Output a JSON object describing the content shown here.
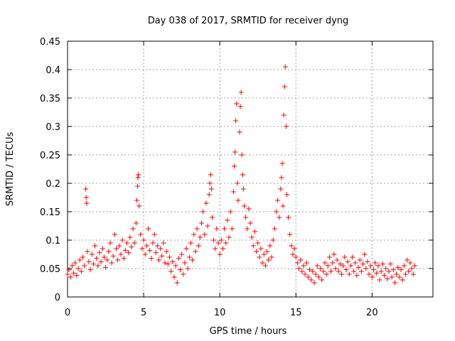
{
  "chart_data": {
    "type": "scatter",
    "title": "Day 038 of 2017, SRMTID for receiver dyng",
    "xlabel": "GPS time / hours",
    "ylabel": "SRMTID / TECUs",
    "xlim": [
      0,
      24
    ],
    "ylim": [
      0,
      0.45
    ],
    "xticks": [
      0,
      5,
      10,
      15,
      20
    ],
    "xtick_labels": [
      "0",
      "5",
      "10",
      "15",
      "20"
    ],
    "yticks": [
      0,
      0.05,
      0.1,
      0.15,
      0.2,
      0.25,
      0.3,
      0.35,
      0.4,
      0.45
    ],
    "ytick_labels": [
      "0",
      "0.05",
      "0.1",
      "0.15",
      "0.2",
      "0.25",
      "0.3",
      "0.35",
      "0.4",
      "0.45"
    ],
    "grid": true,
    "marker": "plus",
    "color": "#ff0000",
    "series": [
      {
        "name": "SRMTID",
        "points": [
          [
            0.0,
            0.04
          ],
          [
            0.1,
            0.048
          ],
          [
            0.2,
            0.035
          ],
          [
            0.3,
            0.055
          ],
          [
            0.4,
            0.042
          ],
          [
            0.5,
            0.06
          ],
          [
            0.6,
            0.038
          ],
          [
            0.7,
            0.05
          ],
          [
            0.8,
            0.065
          ],
          [
            0.9,
            0.045
          ],
          [
            1.0,
            0.07
          ],
          [
            1.1,
            0.055
          ],
          [
            1.2,
            0.19
          ],
          [
            1.22,
            0.175
          ],
          [
            1.25,
            0.165
          ],
          [
            1.3,
            0.08
          ],
          [
            1.4,
            0.062
          ],
          [
            1.5,
            0.048
          ],
          [
            1.6,
            0.075
          ],
          [
            1.7,
            0.058
          ],
          [
            1.8,
            0.09
          ],
          [
            1.9,
            0.068
          ],
          [
            2.0,
            0.055
          ],
          [
            2.1,
            0.078
          ],
          [
            2.2,
            0.062
          ],
          [
            2.3,
            0.085
          ],
          [
            2.4,
            0.07
          ],
          [
            2.5,
            0.052
          ],
          [
            2.6,
            0.065
          ],
          [
            2.7,
            0.08
          ],
          [
            2.8,
            0.095
          ],
          [
            2.9,
            0.06
          ],
          [
            3.0,
            0.072
          ],
          [
            3.1,
            0.11
          ],
          [
            3.2,
            0.085
          ],
          [
            3.3,
            0.065
          ],
          [
            3.4,
            0.09
          ],
          [
            3.5,
            0.075
          ],
          [
            3.6,
            0.1
          ],
          [
            3.7,
            0.068
          ],
          [
            3.8,
            0.082
          ],
          [
            3.9,
            0.095
          ],
          [
            4.0,
            0.078
          ],
          [
            4.1,
            0.105
          ],
          [
            4.2,
            0.088
          ],
          [
            4.3,
            0.12
          ],
          [
            4.4,
            0.095
          ],
          [
            4.5,
            0.13
          ],
          [
            4.55,
            0.17
          ],
          [
            4.6,
            0.195
          ],
          [
            4.62,
            0.21
          ],
          [
            4.65,
            0.215
          ],
          [
            4.7,
            0.16
          ],
          [
            4.8,
            0.11
          ],
          [
            4.9,
            0.085
          ],
          [
            5.0,
            0.1
          ],
          [
            5.1,
            0.075
          ],
          [
            5.2,
            0.09
          ],
          [
            5.3,
            0.12
          ],
          [
            5.4,
            0.082
          ],
          [
            5.5,
            0.068
          ],
          [
            5.6,
            0.095
          ],
          [
            5.7,
            0.11
          ],
          [
            5.8,
            0.078
          ],
          [
            5.9,
            0.09
          ],
          [
            6.0,
            0.065
          ],
          [
            6.1,
            0.085
          ],
          [
            6.2,
            0.072
          ],
          [
            6.3,
            0.095
          ],
          [
            6.4,
            0.06
          ],
          [
            6.5,
            0.08
          ],
          [
            6.6,
            0.058
          ],
          [
            6.7,
            0.07
          ],
          [
            6.8,
            0.045
          ],
          [
            6.9,
            0.062
          ],
          [
            7.0,
            0.035
          ],
          [
            7.1,
            0.055
          ],
          [
            7.2,
            0.025
          ],
          [
            7.3,
            0.068
          ],
          [
            7.4,
            0.048
          ],
          [
            7.5,
            0.075
          ],
          [
            7.6,
            0.04
          ],
          [
            7.7,
            0.06
          ],
          [
            7.8,
            0.085
          ],
          [
            7.9,
            0.05
          ],
          [
            8.0,
            0.07
          ],
          [
            8.1,
            0.095
          ],
          [
            8.2,
            0.065
          ],
          [
            8.3,
            0.11
          ],
          [
            8.4,
            0.08
          ],
          [
            8.5,
            0.12
          ],
          [
            8.6,
            0.09
          ],
          [
            8.7,
            0.105
          ],
          [
            8.8,
            0.13
          ],
          [
            8.9,
            0.15
          ],
          [
            9.0,
            0.11
          ],
          [
            9.1,
            0.165
          ],
          [
            9.2,
            0.125
          ],
          [
            9.3,
            0.18
          ],
          [
            9.35,
            0.2
          ],
          [
            9.4,
            0.215
          ],
          [
            9.45,
            0.19
          ],
          [
            9.5,
            0.14
          ],
          [
            9.6,
            0.1
          ],
          [
            9.7,
            0.085
          ],
          [
            9.8,
            0.12
          ],
          [
            9.9,
            0.095
          ],
          [
            10.0,
            0.075
          ],
          [
            10.1,
            0.1
          ],
          [
            10.2,
            0.085
          ],
          [
            10.3,
            0.12
          ],
          [
            10.4,
            0.095
          ],
          [
            10.5,
            0.135
          ],
          [
            10.6,
            0.105
          ],
          [
            10.7,
            0.15
          ],
          [
            10.8,
            0.12
          ],
          [
            10.9,
            0.185
          ],
          [
            10.95,
            0.23
          ],
          [
            11.0,
            0.255
          ],
          [
            11.05,
            0.31
          ],
          [
            11.1,
            0.34
          ],
          [
            11.15,
            0.2
          ],
          [
            11.2,
            0.17
          ],
          [
            11.3,
            0.29
          ],
          [
            11.35,
            0.335
          ],
          [
            11.4,
            0.36
          ],
          [
            11.45,
            0.25
          ],
          [
            11.5,
            0.215
          ],
          [
            11.55,
            0.19
          ],
          [
            11.6,
            0.16
          ],
          [
            11.7,
            0.14
          ],
          [
            11.8,
            0.12
          ],
          [
            11.9,
            0.155
          ],
          [
            12.0,
            0.13
          ],
          [
            12.1,
            0.105
          ],
          [
            12.2,
            0.09
          ],
          [
            12.3,
            0.115
          ],
          [
            12.4,
            0.08
          ],
          [
            12.5,
            0.095
          ],
          [
            12.6,
            0.07
          ],
          [
            12.7,
            0.085
          ],
          [
            12.8,
            0.06
          ],
          [
            12.9,
            0.075
          ],
          [
            13.0,
            0.055
          ],
          [
            13.1,
            0.08
          ],
          [
            13.2,
            0.065
          ],
          [
            13.3,
            0.09
          ],
          [
            13.4,
            0.07
          ],
          [
            13.5,
            0.1
          ],
          [
            13.6,
            0.12
          ],
          [
            13.7,
            0.15
          ],
          [
            13.8,
            0.17
          ],
          [
            13.9,
            0.14
          ],
          [
            14.0,
            0.19
          ],
          [
            14.05,
            0.21
          ],
          [
            14.1,
            0.235
          ],
          [
            14.15,
            0.16
          ],
          [
            14.2,
            0.32
          ],
          [
            14.25,
            0.37
          ],
          [
            14.3,
            0.405
          ],
          [
            14.35,
            0.3
          ],
          [
            14.4,
            0.18
          ],
          [
            14.5,
            0.14
          ],
          [
            14.6,
            0.11
          ],
          [
            14.7,
            0.09
          ],
          [
            14.8,
            0.075
          ],
          [
            14.9,
            0.085
          ],
          [
            15.0,
            0.07
          ],
          [
            15.1,
            0.06
          ],
          [
            15.2,
            0.05
          ],
          [
            15.3,
            0.065
          ],
          [
            15.4,
            0.045
          ],
          [
            15.5,
            0.055
          ],
          [
            15.6,
            0.04
          ],
          [
            15.7,
            0.06
          ],
          [
            15.8,
            0.035
          ],
          [
            15.9,
            0.048
          ],
          [
            16.0,
            0.03
          ],
          [
            16.1,
            0.045
          ],
          [
            16.2,
            0.025
          ],
          [
            16.3,
            0.04
          ],
          [
            16.4,
            0.055
          ],
          [
            16.5,
            0.035
          ],
          [
            16.6,
            0.05
          ],
          [
            16.7,
            0.03
          ],
          [
            16.8,
            0.045
          ],
          [
            16.9,
            0.06
          ],
          [
            17.0,
            0.04
          ],
          [
            17.1,
            0.055
          ],
          [
            17.2,
            0.07
          ],
          [
            17.3,
            0.045
          ],
          [
            17.4,
            0.06
          ],
          [
            17.5,
            0.075
          ],
          [
            17.6,
            0.05
          ],
          [
            17.7,
            0.065
          ],
          [
            17.8,
            0.045
          ],
          [
            17.9,
            0.058
          ],
          [
            18.0,
            0.04
          ],
          [
            18.1,
            0.055
          ],
          [
            18.2,
            0.07
          ],
          [
            18.3,
            0.048
          ],
          [
            18.4,
            0.062
          ],
          [
            18.5,
            0.04
          ],
          [
            18.6,
            0.055
          ],
          [
            18.7,
            0.07
          ],
          [
            18.8,
            0.045
          ],
          [
            18.9,
            0.06
          ],
          [
            19.0,
            0.038
          ],
          [
            19.1,
            0.052
          ],
          [
            19.2,
            0.065
          ],
          [
            19.3,
            0.045
          ],
          [
            19.4,
            0.058
          ],
          [
            19.5,
            0.075
          ],
          [
            19.6,
            0.05
          ],
          [
            19.7,
            0.062
          ],
          [
            19.8,
            0.04
          ],
          [
            19.9,
            0.055
          ],
          [
            20.0,
            0.035
          ],
          [
            20.1,
            0.048
          ],
          [
            20.2,
            0.06
          ],
          [
            20.3,
            0.042
          ],
          [
            20.4,
            0.055
          ],
          [
            20.5,
            0.03
          ],
          [
            20.6,
            0.045
          ],
          [
            20.7,
            0.058
          ],
          [
            20.8,
            0.038
          ],
          [
            20.9,
            0.05
          ],
          [
            21.0,
            0.032
          ],
          [
            21.1,
            0.045
          ],
          [
            21.2,
            0.058
          ],
          [
            21.3,
            0.035
          ],
          [
            21.4,
            0.048
          ],
          [
            21.5,
            0.025
          ],
          [
            21.6,
            0.04
          ],
          [
            21.7,
            0.052
          ],
          [
            21.8,
            0.035
          ],
          [
            21.9,
            0.048
          ],
          [
            22.0,
            0.03
          ],
          [
            22.1,
            0.055
          ],
          [
            22.2,
            0.04
          ],
          [
            22.3,
            0.065
          ],
          [
            22.4,
            0.045
          ],
          [
            22.5,
            0.06
          ],
          [
            22.6,
            0.05
          ],
          [
            22.7,
            0.04
          ],
          [
            22.8,
            0.055
          ]
        ]
      }
    ]
  }
}
